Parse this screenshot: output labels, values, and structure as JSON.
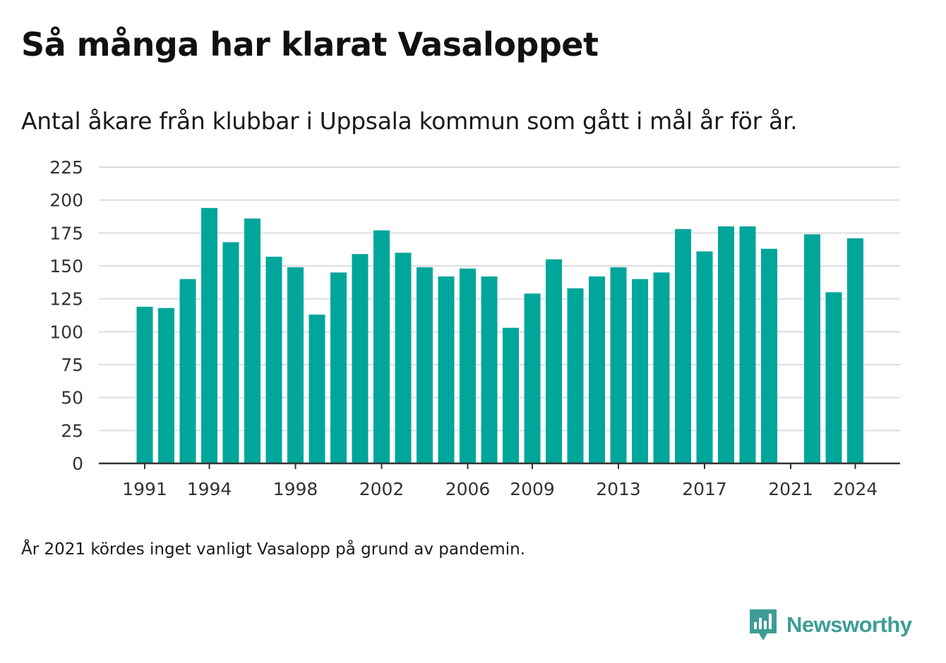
{
  "title": "Så många har klarat Vasaloppet",
  "subtitle": "Antal åkare från klubbar i Uppsala kommun som gått i mål år för år.",
  "note": "År 2021 kördes inget vanligt Vasalopp på grund av pandemin.",
  "brand": {
    "name": "Newsworthy",
    "color": "#3d9d96"
  },
  "colors": {
    "bar": "#00a69a",
    "grid": "#dddddd",
    "axis": "#333333"
  },
  "chart_data": {
    "type": "bar",
    "categories": [
      1991,
      1992,
      1993,
      1994,
      1995,
      1996,
      1997,
      1998,
      1999,
      2000,
      2001,
      2002,
      2003,
      2004,
      2005,
      2006,
      2007,
      2008,
      2009,
      2010,
      2011,
      2012,
      2013,
      2014,
      2015,
      2016,
      2017,
      2018,
      2019,
      2020,
      2021,
      2022,
      2023,
      2024
    ],
    "values": [
      119,
      118,
      140,
      194,
      168,
      186,
      157,
      149,
      113,
      145,
      159,
      177,
      160,
      149,
      142,
      148,
      142,
      103,
      129,
      155,
      133,
      142,
      149,
      140,
      145,
      178,
      161,
      180,
      180,
      163,
      null,
      174,
      130,
      171
    ],
    "x_tick_labels": [
      "1991",
      "1994",
      "1998",
      "2002",
      "2006",
      "2009",
      "2013",
      "2017",
      "2021",
      "2024"
    ],
    "y_ticks": [
      0,
      25,
      50,
      75,
      100,
      125,
      150,
      175,
      200,
      225
    ],
    "ylim": [
      0,
      225
    ],
    "grid": true,
    "xlabel": "",
    "ylabel": ""
  }
}
